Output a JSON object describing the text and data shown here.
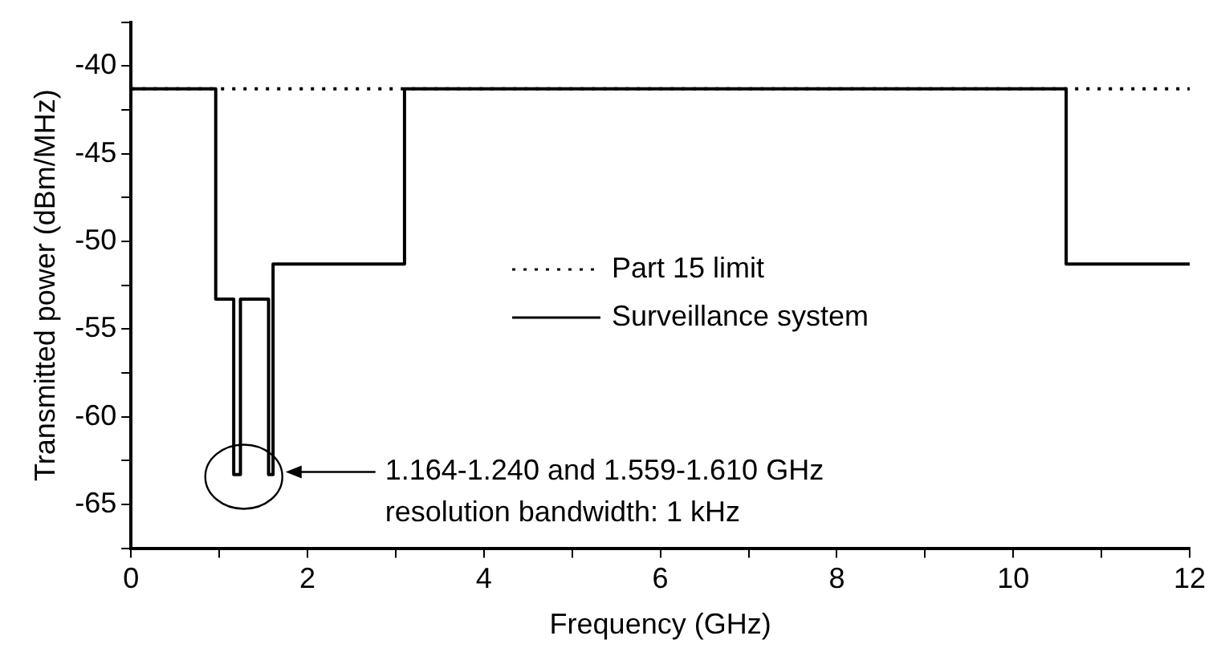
{
  "chart_data": {
    "type": "line",
    "xlabel": "Frequency (GHz)",
    "ylabel": "Transmitted power (dBm/MHz)",
    "xlim": [
      0,
      12
    ],
    "xticks": [
      0,
      {
        "value": 1,
        "label": null
      },
      2,
      {
        "value": 3,
        "label": null
      },
      4,
      {
        "value": 5,
        "label": null
      },
      6,
      {
        "value": 7,
        "label": null
      },
      8,
      {
        "value": 9,
        "label": null
      },
      10,
      {
        "value": 11,
        "label": null
      },
      12
    ],
    "ylim": [
      -67.5,
      -37.5
    ],
    "yticks": [
      {
        "value": -67.5,
        "label": null
      },
      -65,
      {
        "value": -62.5,
        "label": null
      },
      -60,
      {
        "value": -57.5,
        "label": null
      },
      -55,
      {
        "value": -52.5,
        "label": null
      },
      -50,
      {
        "value": -47.5,
        "label": null
      },
      -45,
      {
        "value": -42.5,
        "label": null
      },
      -40,
      {
        "value": -37.5,
        "label": null
      }
    ],
    "grid": false,
    "legend": "center",
    "marker": "none",
    "series": [
      {
        "name": "Part 15 limit",
        "color": "#000000",
        "line_style": "dotted",
        "x": [
          0,
          12
        ],
        "values": [
          -41.3,
          -41.3
        ]
      },
      {
        "name": "Surveillance system",
        "color": "#000000",
        "line_style": "solid",
        "x": [
          0,
          0.96,
          0.96,
          1.164,
          1.164,
          1.24,
          1.24,
          1.559,
          1.559,
          1.61,
          1.61,
          3.1,
          3.1,
          10.6,
          10.6,
          12
        ],
        "values": [
          -41.3,
          -41.3,
          -53.3,
          -53.3,
          -63.3,
          -63.3,
          -53.3,
          -53.3,
          -63.3,
          -63.3,
          -51.3,
          -51.3,
          -41.3,
          -41.3,
          -51.3,
          -51.3
        ]
      }
    ],
    "annotations": [
      "1.164-1.240 and 1.559-1.610 GHz\nresolution bandwidth: 1 kHz"
    ]
  }
}
